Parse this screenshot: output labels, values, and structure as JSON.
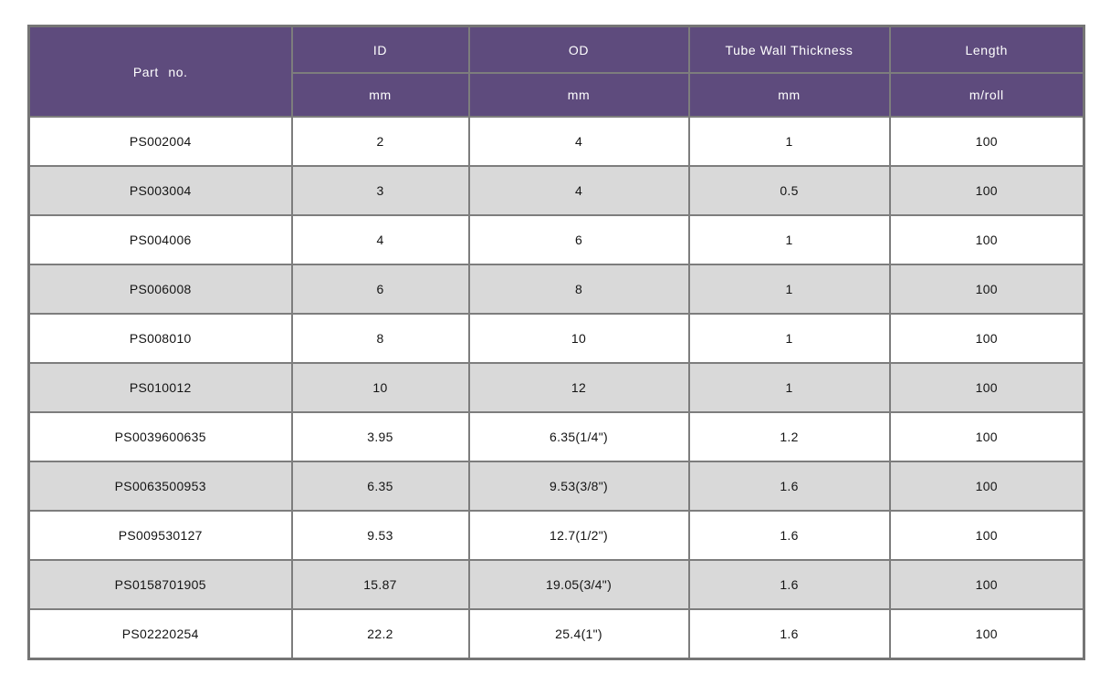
{
  "colors": {
    "header_bg": "#5e4b7d",
    "header_text": "#ffffff",
    "row_bg": "#ffffff",
    "row_alt_bg": "#d9d9d9",
    "border_color": "#7d7d7d",
    "border_outer": "#757575",
    "cell_text": "#141414"
  },
  "table": {
    "column_keys": [
      "part-no",
      "id",
      "od",
      "tube-wall-thickness",
      "length"
    ],
    "columns": [
      {
        "label": "Part no.",
        "unit": ""
      },
      {
        "label": "ID",
        "unit": "mm"
      },
      {
        "label": "OD",
        "unit": "mm"
      },
      {
        "label": "Tube Wall Thickness",
        "unit": "mm"
      },
      {
        "label": "Length",
        "unit": "m/roll"
      }
    ],
    "rows": [
      [
        "PS002004",
        "2",
        "4",
        "1",
        "100"
      ],
      [
        "PS003004",
        "3",
        "4",
        "0.5",
        "100"
      ],
      [
        "PS004006",
        "4",
        "6",
        "1",
        "100"
      ],
      [
        "PS006008",
        "6",
        "8",
        "1",
        "100"
      ],
      [
        "PS008010",
        "8",
        "10",
        "1",
        "100"
      ],
      [
        "PS010012",
        "10",
        "12",
        "1",
        "100"
      ],
      [
        "PS0039600635",
        "3.95",
        "6.35(1/4\")",
        "1.2",
        "100"
      ],
      [
        "PS0063500953",
        "6.35",
        "9.53(3/8\")",
        "1.6",
        "100"
      ],
      [
        "PS009530127",
        "9.53",
        "12.7(1/2\")",
        "1.6",
        "100"
      ],
      [
        "PS0158701905",
        "15.87",
        "19.05(3/4\")",
        "1.6",
        "100"
      ],
      [
        "PS02220254",
        "22.2",
        "25.4(1\")",
        "1.6",
        "100"
      ]
    ]
  }
}
